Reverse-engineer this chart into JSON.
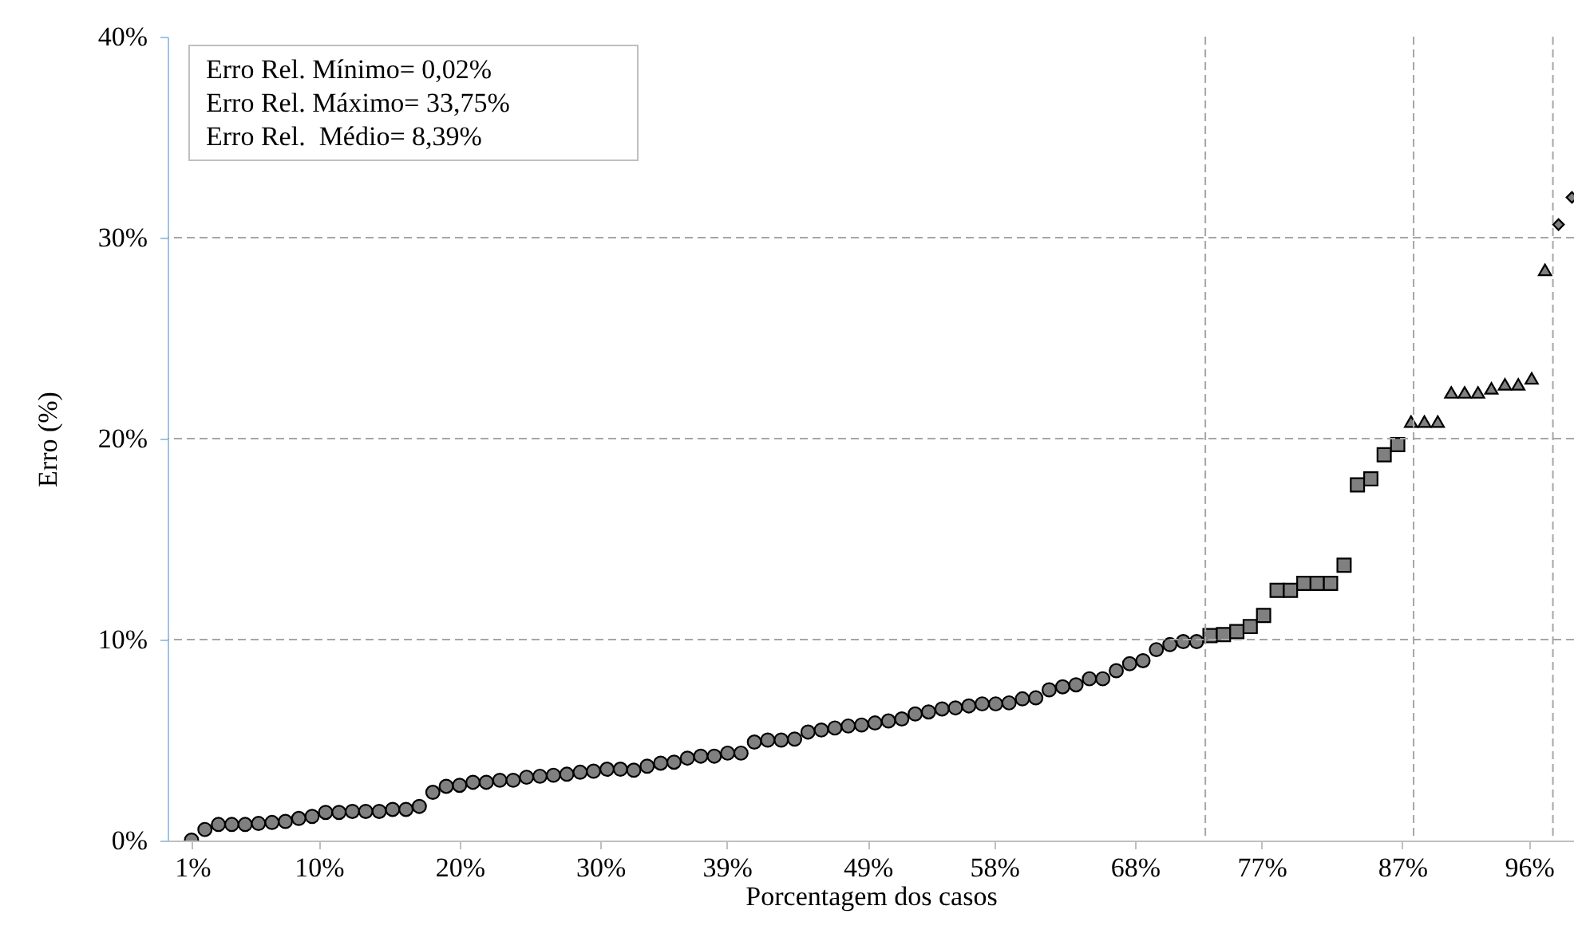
{
  "chart_data": {
    "type": "scatter",
    "xlabel": "Porcentagem dos casos",
    "ylabel": "Erro (%)",
    "annotations": [
      "Erro Rel. Mínimo= 0,02%",
      "Erro Rel. Máximo= 33,75%",
      "Erro Rel.  Médio= 8,39%"
    ],
    "xlim": [
      -0.75,
      99.2
    ],
    "xticks": [
      {
        "value": 1,
        "label": "1%"
      },
      {
        "value": 10,
        "label": "10%"
      },
      {
        "value": 20,
        "label": "20%"
      },
      {
        "value": 30,
        "label": "30%"
      },
      {
        "value": 39,
        "label": "39%"
      },
      {
        "value": 49,
        "label": "49%"
      },
      {
        "value": 58,
        "label": "58%"
      },
      {
        "value": 68,
        "label": "68%"
      },
      {
        "value": 77,
        "label": "77%"
      },
      {
        "value": 87,
        "label": "87%"
      },
      {
        "value": 96,
        "label": "96%"
      }
    ],
    "ylim": [
      0,
      40
    ],
    "yticks": [
      {
        "value": 0,
        "label": "0%"
      },
      {
        "value": 10,
        "label": "10%"
      },
      {
        "value": 20,
        "label": "20%"
      },
      {
        "value": 30,
        "label": "30%"
      },
      {
        "value": 40,
        "label": "40%"
      }
    ],
    "ref_lines": [
      {
        "axis": "y",
        "value": 10,
        "color": "#a6a6a6",
        "line_style": "dashed"
      },
      {
        "axis": "y",
        "value": 20,
        "color": "#a6a6a6",
        "line_style": "dashed"
      },
      {
        "axis": "y",
        "value": 30,
        "color": "#a6a6a6",
        "line_style": "dashed"
      },
      {
        "axis": "x",
        "value": 73.0,
        "color": "#a6a6a6",
        "line_style": "dashed"
      },
      {
        "axis": "x",
        "value": 87.8,
        "color": "#a6a6a6",
        "line_style": "dashed"
      },
      {
        "axis": "x",
        "value": 97.7,
        "color": "#a6a6a6",
        "line_style": "dashed"
      }
    ],
    "series": [
      {
        "color": "#808080",
        "marker": "circle",
        "x": [
          0.95,
          1.9,
          2.86,
          3.81,
          4.76,
          5.71,
          6.67,
          7.62,
          8.57,
          9.52,
          10.48,
          11.43,
          12.38,
          13.33,
          14.29,
          15.24,
          16.19,
          17.14,
          18.1,
          19.05,
          20.0,
          20.95,
          21.9,
          22.86,
          23.81,
          24.76,
          25.71,
          26.67,
          27.62,
          28.57,
          29.52,
          30.48,
          31.43,
          32.38,
          33.33,
          34.29,
          35.24,
          36.19,
          37.14,
          38.1,
          39.05,
          40.0,
          40.95,
          41.9,
          42.86,
          43.81,
          44.76,
          45.71,
          46.67,
          47.62,
          48.57,
          49.52,
          50.48,
          51.43,
          52.38,
          53.33,
          54.29,
          55.24,
          56.19,
          57.14,
          58.1,
          59.05,
          60.0,
          60.95,
          61.9,
          62.86,
          63.81,
          64.76,
          65.71,
          66.67,
          67.62,
          68.57,
          69.52,
          70.48,
          71.43,
          72.38
        ],
        "values": [
          0.02,
          0.55,
          0.8,
          0.8,
          0.8,
          0.85,
          0.9,
          0.95,
          1.1,
          1.2,
          1.4,
          1.4,
          1.45,
          1.45,
          1.45,
          1.55,
          1.55,
          1.7,
          2.4,
          2.7,
          2.75,
          2.9,
          2.9,
          3.0,
          3.0,
          3.15,
          3.2,
          3.25,
          3.3,
          3.4,
          3.45,
          3.55,
          3.55,
          3.5,
          3.7,
          3.85,
          3.9,
          4.1,
          4.2,
          4.2,
          4.35,
          4.35,
          4.9,
          5.0,
          5.0,
          5.05,
          5.4,
          5.5,
          5.6,
          5.7,
          5.75,
          5.85,
          5.95,
          6.05,
          6.3,
          6.4,
          6.55,
          6.6,
          6.7,
          6.8,
          6.8,
          6.85,
          7.05,
          7.1,
          7.5,
          7.65,
          7.75,
          8.05,
          8.05,
          8.45,
          8.8,
          8.95,
          9.5,
          9.75,
          9.9,
          9.9
        ]
      },
      {
        "color": "#808080",
        "marker": "square",
        "x": [
          73.33,
          74.29,
          75.24,
          76.19,
          77.14,
          78.1,
          79.05,
          80.0,
          80.95,
          81.9,
          82.86,
          83.81,
          84.76,
          85.71,
          86.67
        ],
        "values": [
          10.2,
          10.25,
          10.4,
          10.65,
          11.2,
          12.45,
          12.45,
          12.8,
          12.8,
          12.8,
          13.7,
          17.7,
          18.0,
          19.2,
          19.7
        ]
      },
      {
        "color": "#808080",
        "marker": "triangle",
        "x": [
          87.62,
          88.57,
          89.52,
          90.48,
          91.43,
          92.38,
          93.33,
          94.29,
          95.24,
          96.19,
          97.14
        ],
        "values": [
          20.85,
          20.85,
          20.85,
          22.3,
          22.3,
          22.3,
          22.5,
          22.7,
          22.7,
          23.0,
          28.4
        ]
      },
      {
        "color": "#808080",
        "marker": "diamond",
        "x": [
          98.1,
          99.05
        ],
        "values": [
          30.65,
          32.0
        ]
      }
    ]
  }
}
